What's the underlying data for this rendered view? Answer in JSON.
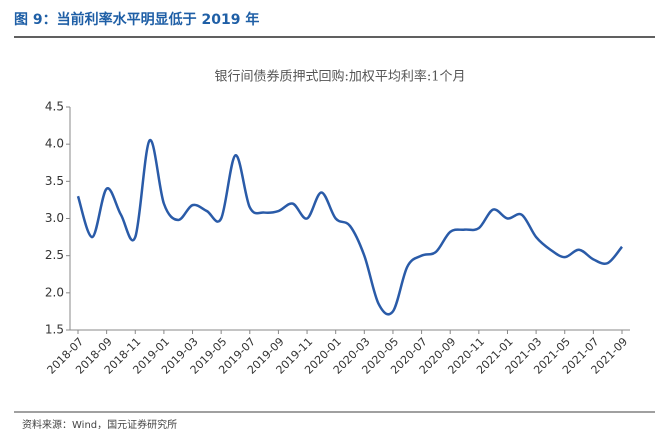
{
  "header": {
    "title": "图 9：当前利率水平明显低于 2019 年"
  },
  "chart_data": {
    "type": "line",
    "title": "银行间债券质押式回购:加权平均利率:1个月",
    "categories": [
      "2018-07",
      null,
      "2018-09",
      null,
      "2018-11",
      null,
      "2019-01",
      null,
      "2019-03",
      null,
      "2019-05",
      null,
      "2019-07",
      null,
      "2019-09",
      null,
      "2019-11",
      null,
      "2020-01",
      null,
      "2020-03",
      null,
      "2020-05",
      null,
      "2020-07",
      null,
      "2020-09",
      null,
      "2020-11",
      null,
      "2021-01",
      null,
      "2021-03",
      null,
      "2021-05",
      null,
      "2021-07",
      null,
      "2021-09"
    ],
    "series": [
      {
        "color": "#2a5ba8",
        "values": [
          3.3,
          2.75,
          3.4,
          3.05,
          2.75,
          4.05,
          3.2,
          2.98,
          3.18,
          3.1,
          3.0,
          3.85,
          3.15,
          3.08,
          3.1,
          3.2,
          3.0,
          3.35,
          3.0,
          2.9,
          2.5,
          1.85,
          1.75,
          2.35,
          2.5,
          2.55,
          2.82,
          2.85,
          2.87,
          3.12,
          3.0,
          3.05,
          2.75,
          2.58,
          2.48,
          2.58,
          2.45,
          2.4,
          2.62
        ]
      }
    ],
    "ylim": [
      1.5,
      4.5
    ],
    "yticks": [
      1.5,
      {
        "value": 2,
        "label": "2.0"
      },
      2.5,
      {
        "value": 3,
        "label": "3.0"
      },
      3.5,
      {
        "value": 4,
        "label": "4.0"
      },
      4.5
    ],
    "grid": false
  },
  "footer": {
    "source": "资料来源：Wind，国元证券研究所"
  }
}
